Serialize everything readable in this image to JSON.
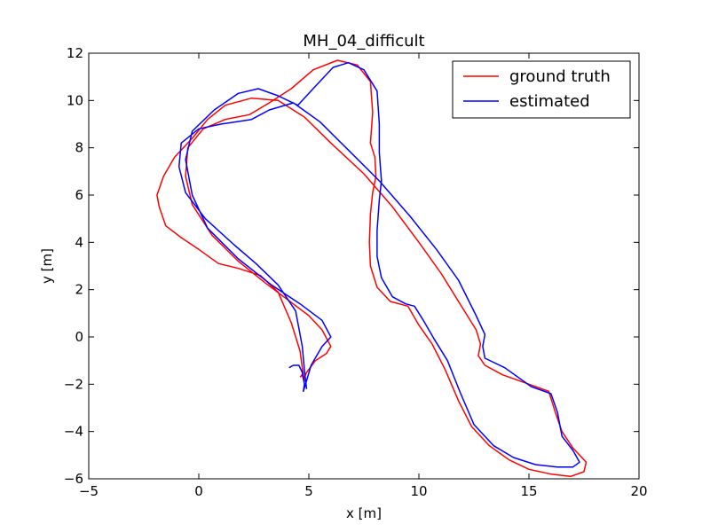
{
  "chart_data": {
    "type": "line",
    "title": "MH_04_difficult",
    "xlabel": "x [m]",
    "ylabel": "y [m]",
    "xlim": [
      -5,
      20
    ],
    "ylim": [
      -6,
      12
    ],
    "xticks": [
      -5,
      0,
      5,
      10,
      15,
      20
    ],
    "yticks": [
      -6,
      -4,
      -2,
      0,
      2,
      4,
      6,
      8,
      10,
      12
    ],
    "grid": false,
    "legend_position": "top-right",
    "series": [
      {
        "name": "ground truth",
        "color": "#ff0000",
        "points": [
          [
            4.6,
            -1.7
          ],
          [
            4.7,
            -1.6
          ],
          [
            4.75,
            -1.8
          ],
          [
            4.9,
            -1.5
          ],
          [
            5.3,
            -1.0
          ],
          [
            5.8,
            -0.7
          ],
          [
            6.0,
            -0.4
          ],
          [
            5.6,
            0.3
          ],
          [
            5.0,
            0.9
          ],
          [
            4.0,
            1.6
          ],
          [
            3.0,
            2.3
          ],
          [
            1.8,
            3.2
          ],
          [
            0.6,
            4.3
          ],
          [
            -0.3,
            5.6
          ],
          [
            -0.6,
            6.8
          ],
          [
            -0.5,
            8.0
          ],
          [
            0.2,
            8.8
          ],
          [
            1.2,
            9.2
          ],
          [
            2.3,
            9.4
          ],
          [
            3.2,
            9.9
          ],
          [
            4.2,
            10.5
          ],
          [
            5.2,
            11.3
          ],
          [
            6.3,
            11.7
          ],
          [
            7.2,
            11.5
          ],
          [
            7.8,
            10.8
          ],
          [
            7.9,
            9.5
          ],
          [
            7.8,
            8.2
          ],
          [
            8.0,
            7.6
          ],
          [
            8.05,
            6.8
          ],
          [
            7.9,
            6.1
          ],
          [
            7.8,
            5.2
          ],
          [
            7.75,
            4.0
          ],
          [
            7.8,
            3.0
          ],
          [
            8.1,
            2.1
          ],
          [
            8.7,
            1.5
          ],
          [
            9.5,
            1.3
          ],
          [
            10.0,
            0.5
          ],
          [
            10.6,
            -0.3
          ],
          [
            11.2,
            -1.4
          ],
          [
            11.8,
            -2.7
          ],
          [
            12.4,
            -3.8
          ],
          [
            13.2,
            -4.6
          ],
          [
            14.1,
            -5.2
          ],
          [
            15.0,
            -5.6
          ],
          [
            16.0,
            -5.8
          ],
          [
            16.9,
            -5.9
          ],
          [
            17.5,
            -5.7
          ],
          [
            17.6,
            -5.3
          ],
          [
            17.0,
            -4.7
          ],
          [
            16.5,
            -4.0
          ],
          [
            16.2,
            -3.2
          ],
          [
            15.9,
            -2.3
          ],
          [
            15.0,
            -2.0
          ],
          [
            13.8,
            -1.6
          ],
          [
            13.0,
            -1.2
          ],
          [
            12.7,
            -0.8
          ],
          [
            12.8,
            -0.3
          ],
          [
            12.6,
            0.3
          ],
          [
            11.8,
            1.5
          ],
          [
            11.0,
            2.7
          ],
          [
            10.0,
            4.0
          ],
          [
            8.8,
            5.5
          ],
          [
            7.5,
            6.9
          ],
          [
            6.0,
            8.2
          ],
          [
            4.8,
            9.3
          ],
          [
            3.6,
            10.0
          ],
          [
            2.4,
            10.1
          ],
          [
            1.2,
            9.8
          ],
          [
            0.4,
            9.2
          ],
          [
            -0.3,
            8.4
          ],
          [
            -1.1,
            7.6
          ],
          [
            -1.6,
            6.8
          ],
          [
            -1.9,
            6.0
          ],
          [
            -1.8,
            5.5
          ],
          [
            -1.5,
            4.7
          ],
          [
            -0.8,
            4.2
          ],
          [
            0.0,
            3.7
          ],
          [
            0.9,
            3.1
          ],
          [
            1.8,
            2.9
          ],
          [
            2.8,
            2.6
          ],
          [
            3.6,
            1.9
          ],
          [
            4.2,
            0.6
          ],
          [
            4.6,
            -0.6
          ],
          [
            4.7,
            -1.3
          ],
          [
            4.8,
            -1.9
          ]
        ]
      },
      {
        "name": "estimated",
        "color": "#0000ff",
        "points": [
          [
            4.1,
            -1.3
          ],
          [
            4.3,
            -1.2
          ],
          [
            4.55,
            -1.2
          ],
          [
            4.7,
            -1.5
          ],
          [
            4.8,
            -2.0
          ],
          [
            4.75,
            -2.3
          ],
          [
            4.85,
            -2.0
          ],
          [
            5.1,
            -1.2
          ],
          [
            5.6,
            -0.4
          ],
          [
            6.0,
            0.0
          ],
          [
            5.6,
            0.7
          ],
          [
            4.6,
            1.4
          ],
          [
            3.3,
            2.2
          ],
          [
            1.8,
            3.3
          ],
          [
            0.4,
            4.6
          ],
          [
            -0.3,
            6.0
          ],
          [
            -0.6,
            7.5
          ],
          [
            -0.3,
            8.7
          ],
          [
            0.7,
            9.6
          ],
          [
            1.8,
            10.3
          ],
          [
            2.7,
            10.5
          ],
          [
            3.6,
            10.2
          ],
          [
            4.5,
            9.8
          ],
          [
            5.3,
            10.6
          ],
          [
            6.1,
            11.4
          ],
          [
            6.8,
            11.6
          ],
          [
            7.5,
            11.3
          ],
          [
            8.1,
            10.4
          ],
          [
            8.2,
            9.0
          ],
          [
            8.2,
            7.8
          ],
          [
            8.3,
            6.6
          ],
          [
            8.2,
            5.8
          ],
          [
            8.1,
            4.5
          ],
          [
            8.1,
            3.4
          ],
          [
            8.3,
            2.5
          ],
          [
            8.8,
            1.7
          ],
          [
            9.4,
            1.4
          ],
          [
            9.8,
            1.3
          ],
          [
            10.2,
            0.7
          ],
          [
            10.7,
            -0.1
          ],
          [
            11.3,
            -1.0
          ],
          [
            11.9,
            -2.4
          ],
          [
            12.5,
            -3.7
          ],
          [
            13.4,
            -4.6
          ],
          [
            14.3,
            -5.1
          ],
          [
            15.3,
            -5.4
          ],
          [
            16.3,
            -5.5
          ],
          [
            17.0,
            -5.5
          ],
          [
            17.3,
            -5.3
          ],
          [
            17.0,
            -4.8
          ],
          [
            16.5,
            -4.2
          ],
          [
            16.3,
            -3.2
          ],
          [
            16.0,
            -2.4
          ],
          [
            15.1,
            -2.1
          ],
          [
            13.9,
            -1.3
          ],
          [
            13.0,
            -0.9
          ],
          [
            12.9,
            -0.4
          ],
          [
            13.0,
            0.1
          ],
          [
            12.6,
            0.9
          ],
          [
            11.8,
            2.4
          ],
          [
            10.8,
            3.7
          ],
          [
            9.6,
            5.1
          ],
          [
            8.2,
            6.6
          ],
          [
            6.8,
            7.9
          ],
          [
            5.5,
            9.1
          ],
          [
            4.3,
            9.9
          ],
          [
            3.2,
            9.6
          ],
          [
            2.4,
            9.2
          ],
          [
            1.0,
            9.0
          ],
          [
            0.0,
            8.8
          ],
          [
            -0.8,
            8.2
          ],
          [
            -0.9,
            7.2
          ],
          [
            -0.6,
            6.1
          ],
          [
            0.3,
            5.0
          ],
          [
            1.6,
            3.9
          ],
          [
            2.6,
            3.1
          ],
          [
            3.6,
            2.2
          ],
          [
            4.4,
            1.1
          ],
          [
            4.7,
            -0.4
          ],
          [
            4.8,
            -1.4
          ],
          [
            4.9,
            -2.2
          ]
        ]
      }
    ]
  }
}
